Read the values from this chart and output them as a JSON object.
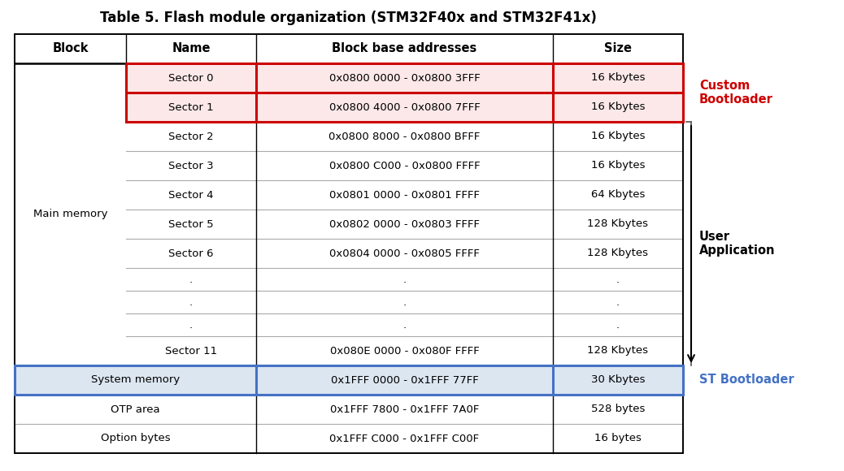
{
  "title": "Table 5. Flash module organization (STM32F40x and STM32F41x)",
  "col_headers": [
    "Block",
    "Name",
    "Block base addresses",
    "Size"
  ],
  "rows": [
    [
      "Main memory",
      "Sector 0",
      "0x0800 0000 - 0x0800 3FFF",
      "16 Kbytes"
    ],
    [
      "Main memory",
      "Sector 1",
      "0x0800 4000 - 0x0800 7FFF",
      "16 Kbytes"
    ],
    [
      "Main memory",
      "Sector 2",
      "0x0800 8000 - 0x0800 BFFF",
      "16 Kbytes"
    ],
    [
      "Main memory",
      "Sector 3",
      "0x0800 C000 - 0x0800 FFFF",
      "16 Kbytes"
    ],
    [
      "Main memory",
      "Sector 4",
      "0x0801 0000 - 0x0801 FFFF",
      "64 Kbytes"
    ],
    [
      "Main memory",
      "Sector 5",
      "0x0802 0000 - 0x0803 FFFF",
      "128 Kbytes"
    ],
    [
      "Main memory",
      "Sector 6",
      "0x0804 0000 - 0x0805 FFFF",
      "128 Kbytes"
    ],
    [
      "Main memory",
      ".",
      ".",
      "."
    ],
    [
      "Main memory",
      ".",
      ".",
      "."
    ],
    [
      "Main memory",
      ".",
      ".",
      "."
    ],
    [
      "Main memory",
      "Sector 11",
      "0x080E 0000 - 0x080F FFFF",
      "128 Kbytes"
    ],
    [
      "System memory",
      "System memory",
      "0x1FFF 0000 - 0x1FFF 77FF",
      "30 Kbytes"
    ],
    [
      "OTP area",
      "OTP area",
      "0x1FFF 7800 - 0x1FFF 7A0F",
      "528 bytes"
    ],
    [
      "Option bytes",
      "Option bytes",
      "0x1FFF C000 - 0x1FFF C00F",
      "16 bytes"
    ]
  ],
  "red_highlight_bg": "#fce8e8",
  "blue_highlight_bg": "#dce6f1",
  "red_border_color": "#cc0000",
  "blue_border_color": "#4472c4",
  "grid_color": "#aaaaaa",
  "custom_bootloader_label": "Custom\nBootloader",
  "custom_bootloader_color": "#cc0000",
  "user_application_label": "User\nApplication",
  "st_bootloader_label": "ST Bootloader",
  "st_bootloader_color": "#4472c4",
  "font_size": 9.5,
  "header_font_size": 10.5,
  "title_font_size": 12
}
